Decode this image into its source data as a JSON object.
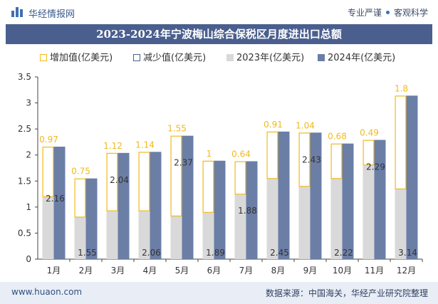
{
  "header": {
    "brand": "华经情报网",
    "tagline_left": "专业严谨",
    "tagline_right": "客观科学"
  },
  "footer": {
    "site": "www.huaon.com",
    "source": "数据来源：中国海关，华经产业研究院整理"
  },
  "colors": {
    "title_bar": "#4a5f8e",
    "increase_border": "#f2b81c",
    "decrease_border": "#4a5f8e",
    "bar_2023": "#d9d9d9",
    "bar_2024": "#6b7ea6",
    "label_increase": "#f2b81c"
  },
  "chart_data": {
    "type": "bar",
    "title": "2023-2024年宁波梅山综合保税区月度进出口总额",
    "categories": [
      "1月",
      "2月",
      "3月",
      "4月",
      "5月",
      "6月",
      "7月",
      "8月",
      "9月",
      "10月",
      "11月",
      "12月"
    ],
    "series": [
      {
        "name": "增加值(亿美元)",
        "values": [
          0.97,
          0.75,
          1.12,
          1.14,
          1.55,
          1,
          0.64,
          0.91,
          1.04,
          0.68,
          0.49,
          1.8
        ]
      },
      {
        "name": "减少值(亿美元)",
        "values": [
          0,
          0,
          0,
          0,
          0,
          0,
          0,
          0,
          0,
          0,
          0,
          0
        ]
      },
      {
        "name": "2023年(亿美元)",
        "values": [
          1.19,
          0.8,
          0.92,
          0.92,
          0.82,
          0.89,
          1.24,
          1.54,
          1.39,
          1.54,
          1.8,
          1.34
        ]
      },
      {
        "name": "2024年(亿美元)",
        "values": [
          2.16,
          1.55,
          2.04,
          2.06,
          2.37,
          1.89,
          1.88,
          2.45,
          2.43,
          2.22,
          2.29,
          3.14
        ]
      }
    ],
    "ylim": [
      0,
      3.5
    ],
    "yticks": [
      0,
      0.5,
      1,
      1.5,
      2,
      2.5,
      3,
      3.5
    ],
    "ytick_labels": [
      "0",
      "0.5",
      "1",
      "1.5",
      "2",
      "2.5",
      "3",
      "3.5"
    ],
    "grid": false,
    "legend": "top"
  }
}
